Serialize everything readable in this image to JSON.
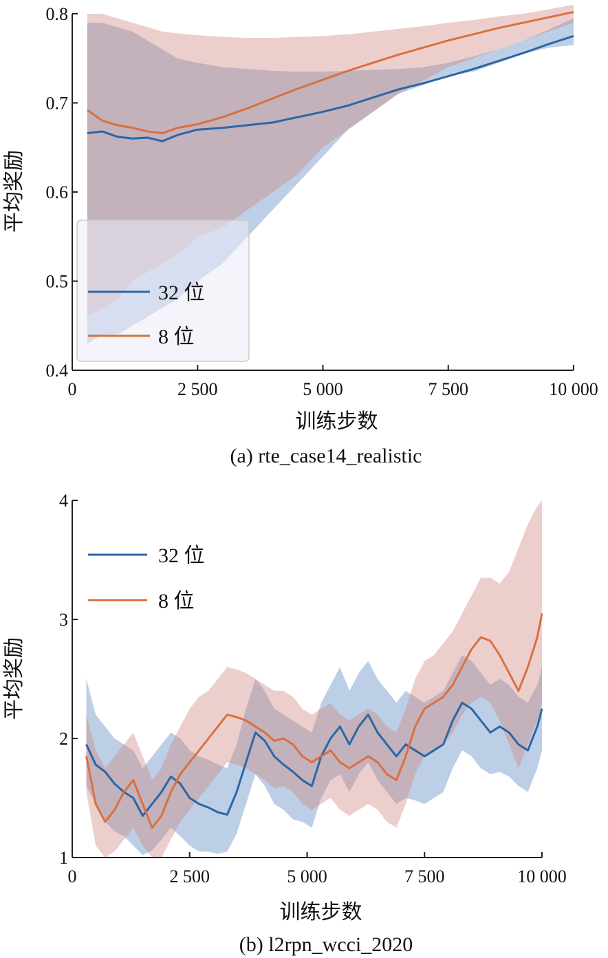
{
  "chart_data": [
    {
      "type": "line",
      "caption": "(a) rte_case14_realistic",
      "title": "",
      "xlabel": "训练步数",
      "ylabel": "平均奖励",
      "xlim": [
        0,
        10000
      ],
      "ylim": [
        0.4,
        0.8
      ],
      "xticks": [
        0,
        2500,
        5000,
        7500,
        10000
      ],
      "xtick_labels": [
        "0",
        "2 500",
        "5 000",
        "7 500",
        "10 000"
      ],
      "yticks": [
        0.4,
        0.5,
        0.6,
        0.7,
        0.8
      ],
      "ytick_labels": [
        "0.4",
        "0.5",
        "0.6",
        "0.7",
        "0.8"
      ],
      "grid": false,
      "legend_position": "bottom-left",
      "x": [
        300,
        600,
        900,
        1200,
        1500,
        1800,
        2100,
        2500,
        3000,
        3500,
        4000,
        4500,
        5000,
        5500,
        6000,
        6500,
        7000,
        7500,
        8000,
        8500,
        9000,
        9500,
        10000
      ],
      "series": [
        {
          "name": "32 位",
          "color": "#2c66a3",
          "values": [
            0.666,
            0.668,
            0.662,
            0.66,
            0.661,
            0.657,
            0.664,
            0.67,
            0.672,
            0.675,
            0.678,
            0.684,
            0.69,
            0.697,
            0.706,
            0.715,
            0.722,
            0.73,
            0.738,
            0.747,
            0.756,
            0.766,
            0.775
          ],
          "lower": [
            0.43,
            0.44,
            0.44,
            0.45,
            0.46,
            0.47,
            0.48,
            0.5,
            0.52,
            0.55,
            0.58,
            0.61,
            0.64,
            0.67,
            0.69,
            0.71,
            0.72,
            0.73,
            0.735,
            0.745,
            0.755,
            0.762,
            0.765
          ],
          "upper": [
            0.79,
            0.79,
            0.785,
            0.78,
            0.77,
            0.76,
            0.75,
            0.745,
            0.74,
            0.738,
            0.736,
            0.735,
            0.735,
            0.736,
            0.737,
            0.738,
            0.74,
            0.745,
            0.752,
            0.76,
            0.77,
            0.782,
            0.795
          ]
        },
        {
          "name": "8 位",
          "color": "#d9703f",
          "values": [
            0.692,
            0.68,
            0.675,
            0.672,
            0.668,
            0.666,
            0.672,
            0.676,
            0.684,
            0.694,
            0.705,
            0.716,
            0.726,
            0.736,
            0.745,
            0.754,
            0.762,
            0.77,
            0.777,
            0.784,
            0.79,
            0.796,
            0.802
          ],
          "lower": [
            0.46,
            0.47,
            0.48,
            0.5,
            0.51,
            0.52,
            0.53,
            0.55,
            0.56,
            0.58,
            0.6,
            0.62,
            0.65,
            0.67,
            0.69,
            0.71,
            0.725,
            0.74,
            0.75,
            0.76,
            0.77,
            0.78,
            0.79
          ],
          "upper": [
            0.8,
            0.8,
            0.795,
            0.79,
            0.785,
            0.78,
            0.778,
            0.776,
            0.774,
            0.773,
            0.773,
            0.774,
            0.775,
            0.777,
            0.78,
            0.783,
            0.786,
            0.79,
            0.793,
            0.797,
            0.8,
            0.805,
            0.81
          ]
        }
      ]
    },
    {
      "type": "line",
      "caption": "(b) l2rpn_wcci_2020",
      "title": "",
      "xlabel": "训练步数",
      "ylabel": "平均奖励",
      "xlim": [
        0,
        10000
      ],
      "ylim": [
        1,
        4
      ],
      "xticks": [
        0,
        2500,
        5000,
        7500,
        10000
      ],
      "xtick_labels": [
        "0",
        "2 500",
        "5 000",
        "7 500",
        "10 000"
      ],
      "yticks": [
        1,
        2,
        3,
        4
      ],
      "ytick_labels": [
        "1",
        "2",
        "3",
        "4"
      ],
      "grid": false,
      "legend_position": "top-left",
      "x": [
        300,
        500,
        700,
        900,
        1100,
        1300,
        1500,
        1700,
        1900,
        2100,
        2300,
        2500,
        2700,
        2900,
        3100,
        3300,
        3500,
        3700,
        3900,
        4100,
        4300,
        4500,
        4700,
        4900,
        5100,
        5300,
        5500,
        5700,
        5900,
        6100,
        6300,
        6500,
        6700,
        6900,
        7100,
        7300,
        7500,
        7700,
        7900,
        8100,
        8300,
        8500,
        8700,
        8900,
        9100,
        9300,
        9500,
        9700,
        9900,
        10000
      ],
      "series": [
        {
          "name": "32 位",
          "color": "#2c66a3",
          "values": [
            1.95,
            1.78,
            1.72,
            1.62,
            1.55,
            1.5,
            1.35,
            1.45,
            1.55,
            1.68,
            1.62,
            1.5,
            1.45,
            1.42,
            1.38,
            1.36,
            1.55,
            1.8,
            2.05,
            1.98,
            1.85,
            1.78,
            1.72,
            1.65,
            1.6,
            1.85,
            2.0,
            2.1,
            1.95,
            2.1,
            2.2,
            2.05,
            1.95,
            1.85,
            1.95,
            1.9,
            1.85,
            1.9,
            1.95,
            2.15,
            2.3,
            2.25,
            2.15,
            2.05,
            2.1,
            2.05,
            1.95,
            1.9,
            2.1,
            2.25
          ],
          "lower": [
            1.6,
            1.45,
            1.3,
            1.22,
            1.18,
            1.1,
            1.02,
            1.06,
            1.15,
            1.25,
            1.18,
            1.1,
            1.05,
            1.05,
            1.03,
            1.05,
            1.2,
            1.45,
            1.7,
            1.6,
            1.45,
            1.4,
            1.32,
            1.3,
            1.25,
            1.5,
            1.65,
            1.7,
            1.55,
            1.7,
            1.8,
            1.65,
            1.55,
            1.45,
            1.5,
            1.48,
            1.45,
            1.5,
            1.55,
            1.75,
            1.9,
            1.85,
            1.75,
            1.7,
            1.72,
            1.68,
            1.6,
            1.55,
            1.75,
            1.9
          ],
          "upper": [
            2.5,
            2.2,
            2.1,
            2.0,
            1.95,
            1.9,
            1.75,
            1.85,
            1.95,
            2.05,
            2.0,
            1.9,
            1.85,
            1.82,
            1.78,
            1.75,
            1.95,
            2.25,
            2.5,
            2.4,
            2.25,
            2.2,
            2.15,
            2.1,
            2.05,
            2.3,
            2.45,
            2.6,
            2.4,
            2.55,
            2.65,
            2.5,
            2.4,
            2.3,
            2.4,
            2.35,
            2.3,
            2.35,
            2.4,
            2.55,
            2.7,
            2.65,
            2.55,
            2.45,
            2.5,
            2.45,
            2.35,
            2.3,
            2.45,
            2.6
          ]
        },
        {
          "name": "8 位",
          "color": "#d9703f",
          "values": [
            1.85,
            1.45,
            1.3,
            1.4,
            1.55,
            1.65,
            1.45,
            1.25,
            1.35,
            1.55,
            1.7,
            1.8,
            1.9,
            2.0,
            2.1,
            2.2,
            2.18,
            2.15,
            2.1,
            2.05,
            1.98,
            2.0,
            1.95,
            1.85,
            1.8,
            1.85,
            1.9,
            1.8,
            1.75,
            1.8,
            1.85,
            1.8,
            1.7,
            1.65,
            1.85,
            2.1,
            2.25,
            2.3,
            2.35,
            2.45,
            2.6,
            2.75,
            2.85,
            2.82,
            2.7,
            2.55,
            2.4,
            2.6,
            2.85,
            3.05
          ],
          "lower": [
            1.55,
            1.1,
            1.0,
            1.05,
            1.15,
            1.25,
            1.1,
            1.0,
            1.0,
            1.15,
            1.3,
            1.4,
            1.5,
            1.6,
            1.7,
            1.8,
            1.78,
            1.75,
            1.7,
            1.65,
            1.58,
            1.6,
            1.55,
            1.45,
            1.4,
            1.45,
            1.5,
            1.4,
            1.35,
            1.4,
            1.45,
            1.4,
            1.3,
            1.25,
            1.45,
            1.7,
            1.85,
            1.9,
            1.95,
            2.05,
            2.2,
            2.3,
            2.35,
            2.3,
            2.15,
            1.95,
            1.75,
            1.95,
            2.15,
            2.3
          ],
          "upper": [
            2.2,
            1.9,
            1.75,
            1.85,
            1.95,
            2.05,
            1.85,
            1.65,
            1.75,
            1.95,
            2.1,
            2.25,
            2.35,
            2.4,
            2.5,
            2.6,
            2.58,
            2.55,
            2.5,
            2.45,
            2.4,
            2.4,
            2.35,
            2.25,
            2.2,
            2.25,
            2.3,
            2.2,
            2.15,
            2.2,
            2.25,
            2.2,
            2.1,
            2.05,
            2.25,
            2.5,
            2.65,
            2.7,
            2.8,
            2.9,
            3.05,
            3.2,
            3.35,
            3.35,
            3.3,
            3.4,
            3.6,
            3.8,
            3.95,
            4.0
          ]
        }
      ]
    }
  ]
}
